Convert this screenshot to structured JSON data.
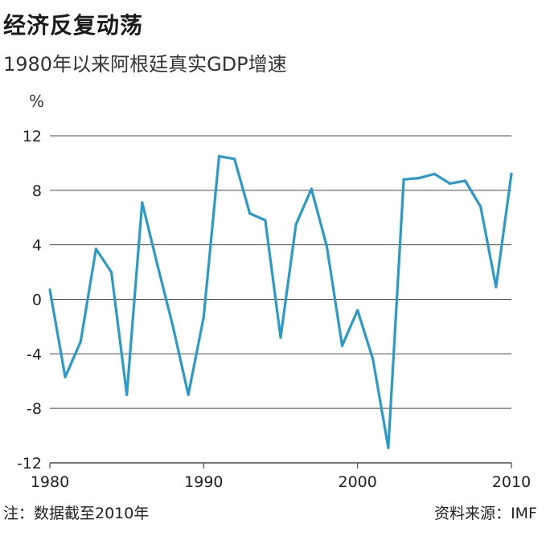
{
  "header": {
    "title": "经济反复动荡",
    "subtitle": "1980年以来阿根廷真实GDP增速"
  },
  "footer": {
    "note": "注：数据截至2010年",
    "source": "资料来源：IMF"
  },
  "colors": {
    "line": "#2a9ac8",
    "grid": "#4a4a4a",
    "text": "#222222"
  },
  "chart_data": {
    "type": "line",
    "title": "1980年以来阿根廷真实GDP增速",
    "ylabel": "%",
    "xlabel": "",
    "ylim": [
      -12,
      12
    ],
    "yticks": [
      12,
      8,
      4,
      0,
      -4,
      -8,
      -12
    ],
    "xlim": [
      1980,
      2010
    ],
    "xticks": [
      1980,
      1990,
      2000,
      2010
    ],
    "grid": true,
    "series": [
      {
        "name": "真实GDP增速",
        "x": [
          1980,
          1981,
          1982,
          1983,
          1984,
          1985,
          1986,
          1987,
          1988,
          1989,
          1990,
          1991,
          1992,
          1993,
          1994,
          1995,
          1996,
          1997,
          1998,
          1999,
          2000,
          2001,
          2002,
          2003,
          2004,
          2005,
          2006,
          2007,
          2008,
          2009,
          2010
        ],
        "values": [
          0.7,
          -5.7,
          -3.1,
          3.7,
          2.0,
          -7.0,
          7.1,
          2.5,
          -2.0,
          -7.0,
          -1.3,
          10.5,
          10.3,
          6.3,
          5.8,
          -2.8,
          5.5,
          8.1,
          3.9,
          -3.4,
          -0.8,
          -4.4,
          -10.9,
          8.8,
          8.9,
          9.2,
          8.5,
          8.7,
          6.8,
          0.9,
          9.2
        ]
      }
    ]
  }
}
